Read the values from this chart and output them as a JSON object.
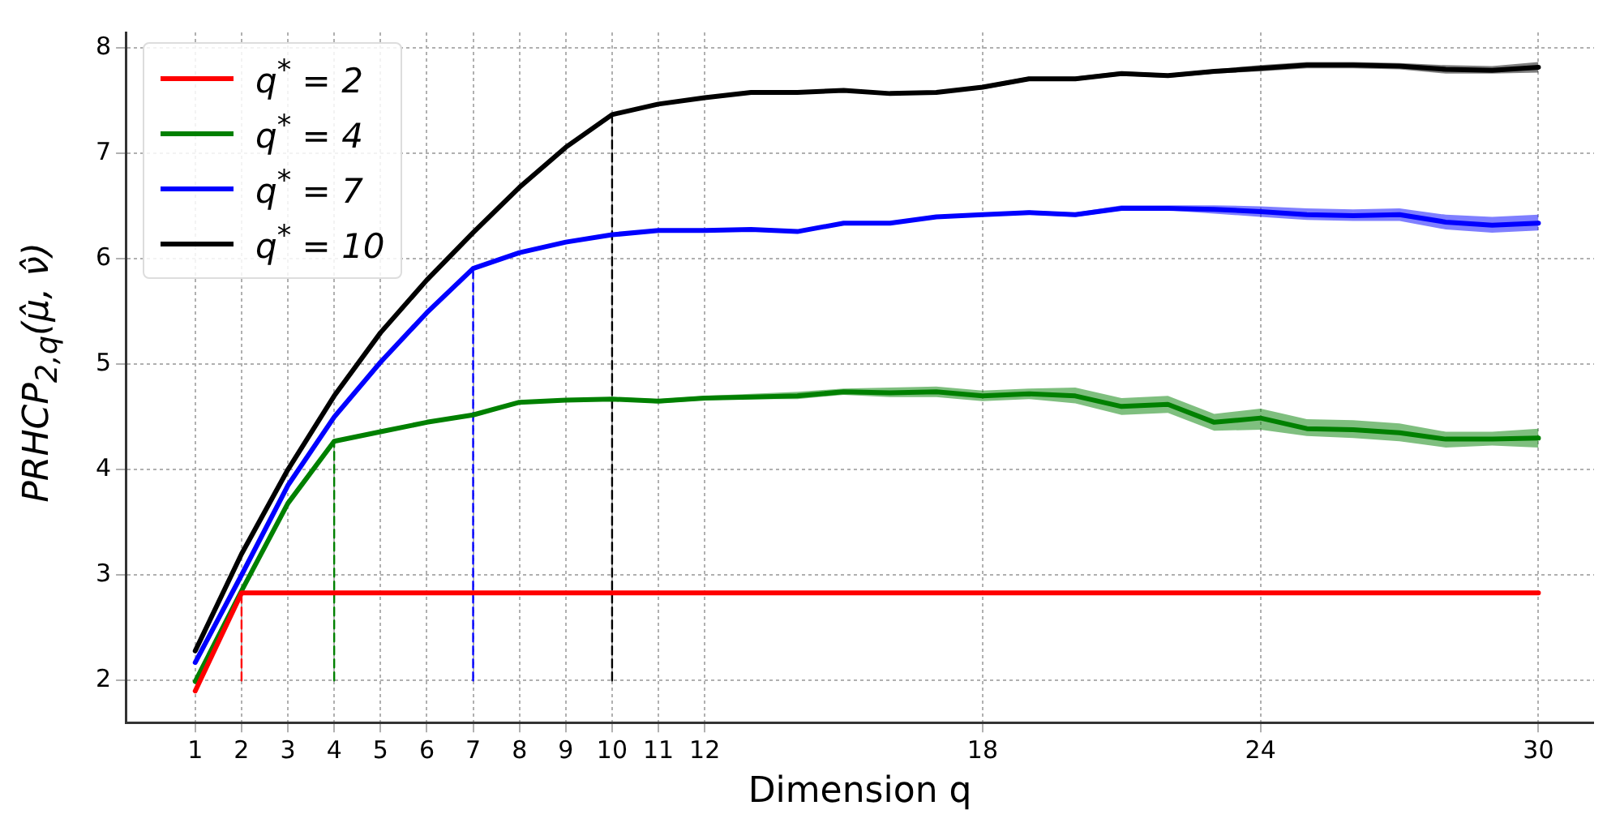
{
  "chart_data": {
    "type": "line",
    "xlabel": "Dimension q",
    "ylabel": "PRHCP$_{2,q}$(μ̂, ν̂)",
    "xlim": [
      -0.5,
      31.2
    ],
    "xticks": [
      1,
      2,
      3,
      4,
      5,
      6,
      7,
      8,
      9,
      10,
      11,
      12,
      18,
      24,
      30
    ],
    "ylim": [
      1.6,
      8.15
    ],
    "yticks": [
      2,
      3,
      4,
      5,
      6,
      7,
      8
    ],
    "grid": true,
    "legend": "top left",
    "marker": "none",
    "x": [
      1,
      2,
      3,
      4,
      5,
      6,
      7,
      8,
      9,
      10,
      11,
      12,
      13,
      14,
      15,
      16,
      17,
      18,
      19,
      20,
      21,
      22,
      23,
      24,
      25,
      26,
      27,
      28,
      29,
      30
    ],
    "series": [
      {
        "name": "q$^{*}$ = 2",
        "color": "#ff0000",
        "line_style": "solid",
        "values": [
          1.9,
          2.83,
          2.83,
          2.83,
          2.83,
          2.83,
          2.83,
          2.83,
          2.83,
          2.83,
          2.83,
          2.83,
          2.83,
          2.83,
          2.83,
          2.83,
          2.83,
          2.83,
          2.83,
          2.83,
          2.83,
          2.83,
          2.83,
          2.83,
          2.83,
          2.83,
          2.83,
          2.83,
          2.83,
          2.83
        ]
      },
      {
        "name": "q$^{*}$ = 4",
        "color": "#008000",
        "line_style": "solid",
        "values": [
          1.99,
          2.85,
          3.68,
          4.27,
          4.36,
          4.45,
          4.52,
          4.64,
          4.66,
          4.67,
          4.65,
          4.68,
          4.69,
          4.7,
          4.74,
          4.73,
          4.74,
          4.7,
          4.72,
          4.7,
          4.6,
          4.62,
          4.45,
          4.49,
          4.39,
          4.38,
          4.35,
          4.29,
          4.29,
          4.3
        ],
        "lower": [
          1.98,
          2.84,
          3.67,
          4.26,
          4.35,
          4.44,
          4.51,
          4.63,
          4.65,
          4.66,
          4.63,
          4.66,
          4.67,
          4.67,
          4.71,
          4.69,
          4.69,
          4.65,
          4.67,
          4.63,
          4.52,
          4.54,
          4.37,
          4.38,
          4.32,
          4.3,
          4.27,
          4.21,
          4.23,
          4.21
        ],
        "upper": [
          2.0,
          2.86,
          3.69,
          4.28,
          4.37,
          4.46,
          4.53,
          4.65,
          4.67,
          4.69,
          4.67,
          4.7,
          4.72,
          4.74,
          4.77,
          4.78,
          4.79,
          4.75,
          4.77,
          4.78,
          4.68,
          4.7,
          4.53,
          4.58,
          4.48,
          4.47,
          4.44,
          4.36,
          4.36,
          4.39
        ]
      },
      {
        "name": "q$^{*}$ = 7",
        "color": "#0000ff",
        "line_style": "solid",
        "values": [
          2.17,
          3.0,
          3.85,
          4.5,
          5.02,
          5.49,
          5.91,
          6.06,
          6.16,
          6.23,
          6.27,
          6.27,
          6.28,
          6.26,
          6.34,
          6.34,
          6.4,
          6.42,
          6.44,
          6.42,
          6.48,
          6.48,
          6.47,
          6.45,
          6.42,
          6.41,
          6.42,
          6.35,
          6.32,
          6.34
        ],
        "lower": [
          2.16,
          2.99,
          3.84,
          4.49,
          5.01,
          5.48,
          5.9,
          6.05,
          6.15,
          6.22,
          6.26,
          6.26,
          6.27,
          6.25,
          6.33,
          6.33,
          6.39,
          6.41,
          6.42,
          6.4,
          6.46,
          6.46,
          6.43,
          6.4,
          6.37,
          6.36,
          6.36,
          6.28,
          6.25,
          6.27
        ],
        "upper": [
          2.18,
          3.01,
          3.86,
          4.51,
          5.03,
          5.5,
          5.92,
          6.07,
          6.17,
          6.24,
          6.28,
          6.28,
          6.29,
          6.27,
          6.35,
          6.35,
          6.41,
          6.43,
          6.46,
          6.44,
          6.51,
          6.51,
          6.51,
          6.5,
          6.48,
          6.47,
          6.48,
          6.42,
          6.4,
          6.42
        ]
      },
      {
        "name": "q$^{*}$ = 10",
        "color": "#000000",
        "line_style": "solid",
        "values": [
          2.28,
          3.2,
          4.0,
          4.7,
          5.3,
          5.8,
          6.25,
          6.68,
          7.06,
          7.37,
          7.47,
          7.53,
          7.58,
          7.58,
          7.6,
          7.57,
          7.58,
          7.63,
          7.71,
          7.71,
          7.76,
          7.74,
          7.78,
          7.81,
          7.84,
          7.84,
          7.83,
          7.8,
          7.79,
          7.82
        ],
        "lower": [
          2.27,
          3.19,
          3.99,
          4.69,
          5.29,
          5.79,
          6.24,
          6.67,
          7.05,
          7.36,
          7.46,
          7.52,
          7.57,
          7.57,
          7.59,
          7.56,
          7.57,
          7.61,
          7.69,
          7.69,
          7.74,
          7.72,
          7.76,
          7.78,
          7.81,
          7.81,
          7.8,
          7.76,
          7.76,
          7.77
        ],
        "upper": [
          2.29,
          3.21,
          4.01,
          4.71,
          5.31,
          5.81,
          6.26,
          6.69,
          7.07,
          7.38,
          7.48,
          7.54,
          7.59,
          7.59,
          7.61,
          7.58,
          7.59,
          7.65,
          7.73,
          7.73,
          7.78,
          7.76,
          7.8,
          7.84,
          7.87,
          7.87,
          7.86,
          7.84,
          7.83,
          7.87
        ]
      },
      {
        "color": "#ff0000",
        "line_style": "dashed",
        "x": [
          2,
          2
        ],
        "values": [
          2,
          2.83
        ]
      },
      {
        "color": "#008000",
        "line_style": "dashed",
        "x": [
          4,
          4
        ],
        "values": [
          2,
          4.27
        ]
      },
      {
        "color": "#0000ff",
        "line_style": "dashed",
        "x": [
          7,
          7
        ],
        "values": [
          2,
          5.91
        ]
      },
      {
        "color": "#000000",
        "line_style": "dashed",
        "x": [
          10,
          10
        ],
        "values": [
          2,
          7.37
        ]
      }
    ]
  }
}
